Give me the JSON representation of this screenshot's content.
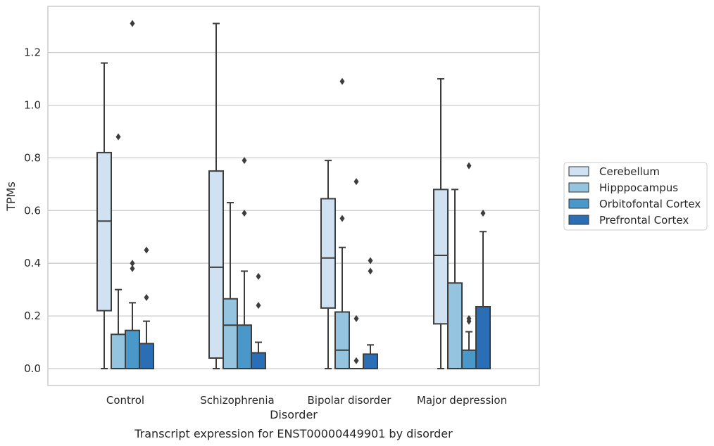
{
  "chart_data": {
    "type": "box",
    "caption": "Transcript expression for ENST00000449901 by disorder",
    "xlabel": "Disorder",
    "ylabel": "TPMs",
    "ylim": [
      -0.065,
      1.375
    ],
    "yticks": [
      0.0,
      0.2,
      0.4,
      0.6,
      0.8,
      1.0,
      1.2
    ],
    "ytick_labels": [
      "0.0",
      "0.2",
      "0.4",
      "0.6",
      "0.8",
      "1.0",
      "1.2"
    ],
    "grid": true,
    "legend_position": "right",
    "categories": [
      "Control",
      "Schizophrenia",
      "Bipolar disorder",
      "Major depression"
    ],
    "series": [
      {
        "name": "Cerebellum",
        "color": "#d0e1f2",
        "boxes": [
          {
            "whisker_low": 0.0,
            "q1": 0.22,
            "median": 0.56,
            "q3": 0.82,
            "whisker_high": 1.16,
            "outliers": []
          },
          {
            "whisker_low": 0.0,
            "q1": 0.04,
            "median": 0.385,
            "q3": 0.75,
            "whisker_high": 1.31,
            "outliers": []
          },
          {
            "whisker_low": 0.0,
            "q1": 0.23,
            "median": 0.42,
            "q3": 0.645,
            "whisker_high": 0.79,
            "outliers": []
          },
          {
            "whisker_low": 0.0,
            "q1": 0.17,
            "median": 0.43,
            "q3": 0.68,
            "whisker_high": 1.1,
            "outliers": []
          }
        ]
      },
      {
        "name": "Hipppocampus",
        "color": "#94c4df",
        "boxes": [
          {
            "whisker_low": 0.0,
            "q1": 0.0,
            "median": 0.0,
            "q3": 0.13,
            "whisker_high": 0.3,
            "outliers": [
              0.88
            ]
          },
          {
            "whisker_low": 0.0,
            "q1": 0.0,
            "median": 0.165,
            "q3": 0.265,
            "whisker_high": 0.63,
            "outliers": []
          },
          {
            "whisker_low": 0.0,
            "q1": 0.0,
            "median": 0.07,
            "q3": 0.215,
            "whisker_high": 0.46,
            "outliers": [
              0.57,
              1.09
            ]
          },
          {
            "whisker_low": 0.0,
            "q1": 0.0,
            "median": 0.0,
            "q3": 0.325,
            "whisker_high": 0.68,
            "outliers": []
          }
        ]
      },
      {
        "name": "Orbitofontal Cortex",
        "color": "#4a98c9",
        "boxes": [
          {
            "whisker_low": 0.0,
            "q1": 0.0,
            "median": 0.0,
            "q3": 0.145,
            "whisker_high": 0.25,
            "outliers": [
              0.38,
              0.4,
              1.31
            ]
          },
          {
            "whisker_low": 0.0,
            "q1": 0.0,
            "median": 0.0,
            "q3": 0.165,
            "whisker_high": 0.37,
            "outliers": [
              0.59,
              0.79
            ]
          },
          {
            "whisker_low": 0.0,
            "q1": 0.0,
            "median": 0.0,
            "q3": 0.0,
            "whisker_high": 0.0,
            "outliers": [
              0.03,
              0.19,
              0.71
            ]
          },
          {
            "whisker_low": 0.0,
            "q1": 0.0,
            "median": 0.0,
            "q3": 0.07,
            "whisker_high": 0.14,
            "outliers": [
              0.18,
              0.19,
              0.77
            ]
          }
        ]
      },
      {
        "name": "Prefrontal Cortex",
        "color": "#2a6fb5",
        "boxes": [
          {
            "whisker_low": 0.0,
            "q1": 0.0,
            "median": 0.0,
            "q3": 0.095,
            "whisker_high": 0.18,
            "outliers": [
              0.27,
              0.45
            ]
          },
          {
            "whisker_low": 0.0,
            "q1": 0.0,
            "median": 0.0,
            "q3": 0.06,
            "whisker_high": 0.1,
            "outliers": [
              0.24,
              0.35
            ]
          },
          {
            "whisker_low": 0.0,
            "q1": 0.0,
            "median": 0.0,
            "q3": 0.055,
            "whisker_high": 0.09,
            "outliers": [
              0.37,
              0.41
            ]
          },
          {
            "whisker_low": 0.0,
            "q1": 0.0,
            "median": 0.0,
            "q3": 0.235,
            "whisker_high": 0.52,
            "outliers": [
              0.59
            ]
          }
        ]
      }
    ]
  }
}
